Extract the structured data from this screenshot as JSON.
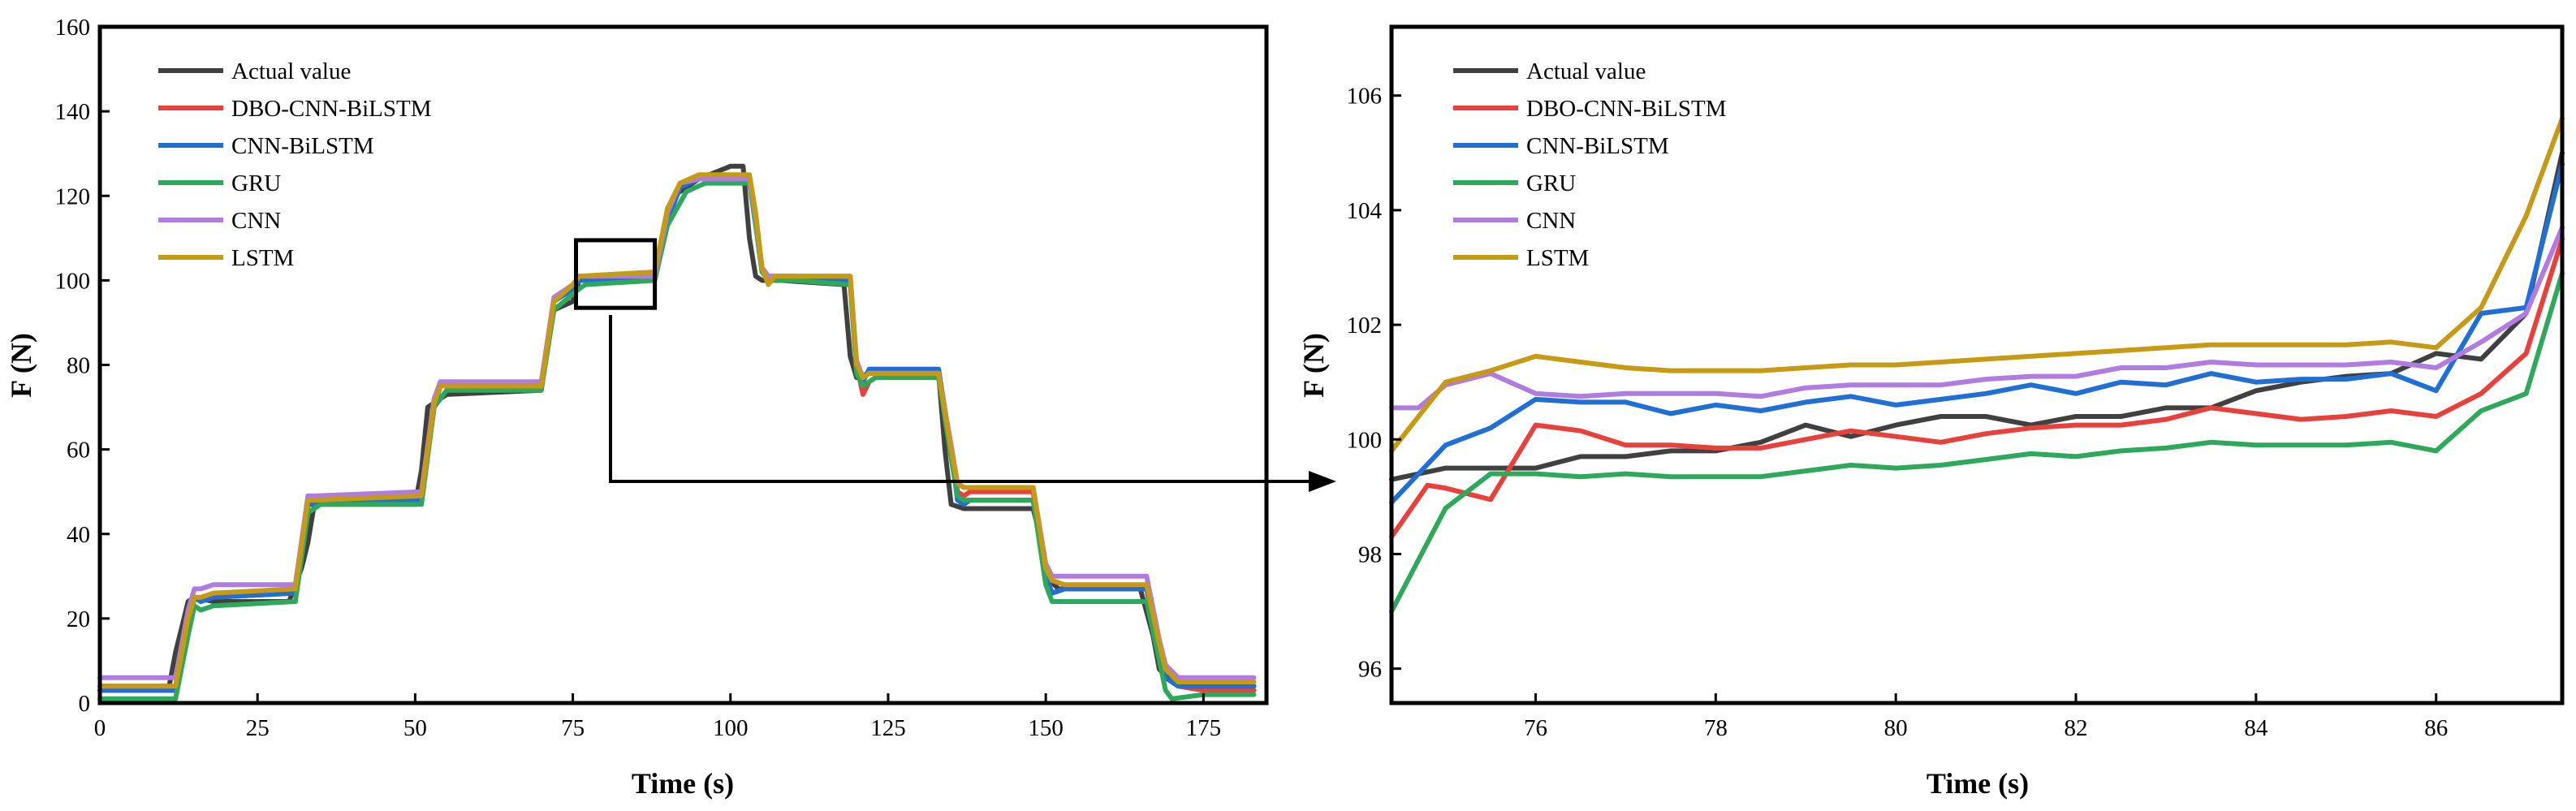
{
  "chart_data": [
    {
      "type": "line",
      "title": "",
      "xlabel": "Time (s)",
      "ylabel": "F (N)",
      "xlim": [
        0,
        185
      ],
      "ylim": [
        0,
        160
      ],
      "xticks": [
        0,
        25,
        50,
        75,
        100,
        125,
        150,
        175
      ],
      "yticks": [
        0,
        20,
        40,
        60,
        80,
        100,
        120,
        140,
        160
      ],
      "legend_position": "top-left",
      "zoom_box": {
        "x_range": [
          75.5,
          88
        ],
        "y_range": [
          93.5,
          109.5
        ]
      },
      "series": [
        {
          "name": "Actual value",
          "color": "#404040",
          "x": [
            0,
            11,
            12,
            13,
            14,
            15,
            18,
            30,
            32,
            33,
            34,
            50,
            51,
            52,
            55,
            70,
            71,
            72,
            75,
            76,
            88,
            89,
            90,
            91,
            95,
            100,
            102,
            103,
            104,
            105,
            108,
            118,
            119,
            120,
            122,
            133,
            134,
            135,
            137,
            148,
            149,
            150,
            152,
            165,
            167,
            168,
            170,
            175,
            183
          ],
          "values": [
            4,
            4,
            12,
            18,
            24,
            25,
            24,
            24,
            32,
            38,
            47,
            47,
            55,
            70,
            73,
            74,
            85,
            93,
            95,
            100,
            101,
            108,
            115,
            120,
            124,
            127,
            127,
            110,
            101,
            100,
            100,
            99,
            82,
            77,
            78,
            78,
            60,
            47,
            46,
            46,
            40,
            30,
            27,
            27,
            16,
            8,
            5,
            4,
            4
          ]
        },
        {
          "name": "DBO-CNN-BiLSTM",
          "color": "#e8413c",
          "x": [
            0,
            12,
            14,
            15,
            16,
            18,
            31,
            33,
            34,
            51,
            53,
            54,
            70,
            72,
            75,
            76,
            88,
            90,
            92,
            95,
            100,
            103,
            104,
            105,
            106,
            107,
            110,
            119,
            120,
            121,
            122,
            124,
            133,
            135,
            136,
            137,
            138,
            148,
            150,
            151,
            153,
            166,
            168,
            169,
            171,
            175,
            183
          ],
          "values": [
            3,
            3,
            18,
            25,
            24,
            25,
            26,
            47,
            48,
            48,
            70,
            75,
            75,
            95,
            98,
            100,
            101,
            115,
            122,
            124,
            124,
            124,
            115,
            103,
            100,
            101,
            101,
            100,
            80,
            73,
            76,
            78,
            78,
            60,
            50,
            49,
            50,
            50,
            30,
            26,
            27,
            27,
            12,
            6,
            4,
            3,
            3
          ]
        },
        {
          "name": "CNN-BiLSTM",
          "color": "#1f6fd4",
          "x": [
            0,
            12,
            14,
            15,
            16,
            18,
            31,
            33,
            34,
            51,
            53,
            54,
            70,
            72,
            75,
            76,
            88,
            90,
            92,
            95,
            100,
            103,
            104,
            105,
            106,
            107,
            110,
            119,
            120,
            121,
            122,
            133,
            135,
            136,
            137,
            138,
            148,
            150,
            151,
            153,
            166,
            168,
            169,
            171,
            175,
            183
          ],
          "values": [
            3,
            3,
            18,
            25,
            24,
            25,
            26,
            47,
            47,
            48,
            70,
            75,
            75,
            95,
            98,
            100,
            101,
            114,
            122,
            124,
            124,
            124,
            114,
            103,
            101,
            101,
            101,
            100,
            80,
            76,
            79,
            79,
            60,
            48,
            47,
            48,
            48,
            30,
            26,
            27,
            27,
            12,
            6,
            4,
            4,
            4
          ]
        },
        {
          "name": "GRU",
          "color": "#2ea85a",
          "x": [
            0,
            12,
            14,
            15,
            16,
            18,
            31,
            33,
            35,
            51,
            53,
            55,
            70,
            72,
            76,
            77,
            88,
            90,
            93,
            96,
            100,
            103,
            104,
            105,
            106,
            107,
            110,
            119,
            120,
            121,
            123,
            133,
            135,
            136,
            137,
            148,
            150,
            151,
            153,
            166,
            168,
            169,
            170,
            175,
            183
          ],
          "values": [
            1,
            1,
            16,
            23,
            22,
            23,
            24,
            45,
            47,
            47,
            70,
            74,
            74,
            93,
            98,
            99,
            100,
            113,
            121,
            123,
            123,
            123,
            113,
            102,
            100,
            100,
            100,
            99,
            78,
            75,
            77,
            77,
            58,
            49,
            48,
            48,
            28,
            24,
            24,
            24,
            10,
            3,
            1,
            2,
            2
          ]
        },
        {
          "name": "CNN",
          "color": "#b07ce0",
          "x": [
            0,
            12,
            14,
            15,
            16,
            18,
            31,
            33,
            34,
            51,
            53,
            54,
            70,
            72,
            75,
            76,
            88,
            90,
            92,
            95,
            100,
            103,
            104,
            105,
            106,
            107,
            110,
            119,
            120,
            121,
            122,
            133,
            135,
            136,
            137,
            148,
            150,
            151,
            153,
            166,
            168,
            169,
            171,
            175,
            183
          ],
          "values": [
            6,
            6,
            22,
            27,
            27,
            28,
            28,
            49,
            49,
            50,
            72,
            76,
            76,
            96,
            99,
            101,
            101,
            116,
            123,
            124,
            124,
            124,
            115,
            103,
            101,
            101,
            101,
            101,
            81,
            77,
            78,
            78,
            61,
            52,
            51,
            51,
            33,
            30,
            30,
            30,
            15,
            9,
            6,
            6,
            6
          ]
        },
        {
          "name": "LSTM",
          "color": "#c79a16",
          "x": [
            0,
            12,
            14,
            15,
            16,
            18,
            31,
            33,
            34,
            51,
            53,
            54,
            70,
            72,
            75,
            76,
            88,
            90,
            92,
            95,
            100,
            103,
            104,
            105,
            106,
            107,
            110,
            119,
            120,
            121,
            122,
            133,
            135,
            136,
            137,
            148,
            150,
            151,
            153,
            166,
            168,
            169,
            171,
            175,
            183
          ],
          "values": [
            4,
            4,
            20,
            25,
            25,
            26,
            27,
            48,
            48,
            49,
            71,
            75,
            75,
            95,
            99,
            101,
            102,
            117,
            123,
            125,
            125,
            125,
            116,
            103,
            99,
            101,
            101,
            101,
            80,
            77,
            78,
            78,
            60,
            52,
            51,
            51,
            32,
            29,
            28,
            28,
            14,
            8,
            5,
            5,
            5
          ]
        }
      ]
    },
    {
      "type": "line",
      "title": "",
      "xlabel": "Time (s)",
      "ylabel": "F (N)",
      "xlim": [
        74.4,
        87.4
      ],
      "ylim": [
        95.4,
        107.2
      ],
      "xticks": [
        76,
        78,
        80,
        82,
        84,
        86
      ],
      "yticks": [
        96,
        98,
        100,
        102,
        104,
        106
      ],
      "legend_position": "top-left",
      "series": [
        {
          "name": "Actual value",
          "color": "#404040",
          "x": [
            74.4,
            75.0,
            75.5,
            76.0,
            76.5,
            77.0,
            77.5,
            78.0,
            78.5,
            79.0,
            79.5,
            80.0,
            80.5,
            81.0,
            81.5,
            82.0,
            82.5,
            83.0,
            83.5,
            84.0,
            84.5,
            85.0,
            85.5,
            86.0,
            86.5,
            87.0,
            87.4
          ],
          "values": [
            99.3,
            99.5,
            99.5,
            99.5,
            99.7,
            99.7,
            99.8,
            99.8,
            99.95,
            100.25,
            100.05,
            100.25,
            100.4,
            100.4,
            100.25,
            100.4,
            100.4,
            100.55,
            100.55,
            100.85,
            101.0,
            101.1,
            101.15,
            101.5,
            101.4,
            102.2,
            105.0
          ]
        },
        {
          "name": "DBO-CNN-BiLSTM",
          "color": "#e8413c",
          "x": [
            74.4,
            74.8,
            75.0,
            75.5,
            76.0,
            76.5,
            77.0,
            77.5,
            78.0,
            78.5,
            79.0,
            79.5,
            80.0,
            80.5,
            81.0,
            81.5,
            82.0,
            82.5,
            83.0,
            83.5,
            84.0,
            84.5,
            85.0,
            85.5,
            86.0,
            86.5,
            87.0,
            87.4
          ],
          "values": [
            98.3,
            99.2,
            99.15,
            98.95,
            100.25,
            100.15,
            99.9,
            99.9,
            99.85,
            99.85,
            100.0,
            100.15,
            100.05,
            99.95,
            100.1,
            100.2,
            100.25,
            100.25,
            100.35,
            100.55,
            100.45,
            100.35,
            100.4,
            100.5,
            100.4,
            100.8,
            101.5,
            103.5
          ]
        },
        {
          "name": "CNN-BiLSTM",
          "color": "#1f6fd4",
          "x": [
            74.4,
            75.0,
            75.5,
            76.0,
            76.5,
            77.0,
            77.5,
            78.0,
            78.5,
            79.0,
            79.5,
            80.0,
            80.5,
            81.0,
            81.5,
            82.0,
            82.5,
            83.0,
            83.5,
            84.0,
            84.5,
            85.0,
            85.5,
            86.0,
            86.5,
            87.0,
            87.4
          ],
          "values": [
            98.9,
            99.9,
            100.2,
            100.7,
            100.65,
            100.65,
            100.45,
            100.6,
            100.5,
            100.65,
            100.75,
            100.6,
            100.7,
            100.8,
            100.95,
            100.8,
            101.0,
            100.95,
            101.15,
            101.0,
            101.05,
            101.05,
            101.15,
            100.85,
            102.2,
            102.3,
            104.8
          ]
        },
        {
          "name": "GRU",
          "color": "#2ea85a",
          "x": [
            74.4,
            74.7,
            75.0,
            75.5,
            76.0,
            76.5,
            77.0,
            77.5,
            78.0,
            78.5,
            79.0,
            79.5,
            80.0,
            80.5,
            81.0,
            81.5,
            82.0,
            82.5,
            83.0,
            83.5,
            84.0,
            84.5,
            85.0,
            85.5,
            86.0,
            86.5,
            87.0,
            87.4
          ],
          "values": [
            97.0,
            97.9,
            98.8,
            99.4,
            99.4,
            99.35,
            99.4,
            99.35,
            99.35,
            99.35,
            99.45,
            99.55,
            99.5,
            99.55,
            99.65,
            99.75,
            99.7,
            99.8,
            99.85,
            99.95,
            99.9,
            99.9,
            99.9,
            99.95,
            99.8,
            100.5,
            100.8,
            102.9
          ]
        },
        {
          "name": "CNN",
          "color": "#b07ce0",
          "x": [
            74.4,
            74.7,
            75.0,
            75.5,
            76.0,
            76.5,
            77.0,
            77.5,
            78.0,
            78.5,
            79.0,
            79.5,
            80.0,
            80.5,
            81.0,
            81.5,
            82.0,
            82.5,
            83.0,
            83.5,
            84.0,
            84.5,
            85.0,
            85.5,
            86.0,
            86.5,
            87.0,
            87.4
          ],
          "values": [
            100.55,
            100.55,
            100.95,
            101.15,
            100.8,
            100.75,
            100.8,
            100.8,
            100.8,
            100.75,
            100.9,
            100.95,
            100.95,
            100.95,
            101.05,
            101.1,
            101.1,
            101.25,
            101.25,
            101.35,
            101.3,
            101.3,
            101.3,
            101.35,
            101.25,
            101.7,
            102.2,
            103.7
          ]
        },
        {
          "name": "LSTM",
          "color": "#c79a16",
          "x": [
            74.4,
            74.7,
            75.0,
            75.5,
            76.0,
            76.5,
            77.0,
            77.5,
            78.0,
            78.5,
            79.0,
            79.5,
            80.0,
            80.5,
            81.0,
            81.5,
            82.0,
            82.5,
            83.0,
            83.5,
            84.0,
            84.5,
            85.0,
            85.5,
            86.0,
            86.5,
            87.0,
            87.4
          ],
          "values": [
            99.8,
            100.4,
            101.0,
            101.2,
            101.45,
            101.35,
            101.25,
            101.2,
            101.2,
            101.2,
            101.25,
            101.3,
            101.3,
            101.35,
            101.4,
            101.45,
            101.5,
            101.55,
            101.6,
            101.65,
            101.65,
            101.65,
            101.65,
            101.7,
            101.6,
            102.3,
            103.9,
            105.6
          ]
        }
      ]
    }
  ]
}
